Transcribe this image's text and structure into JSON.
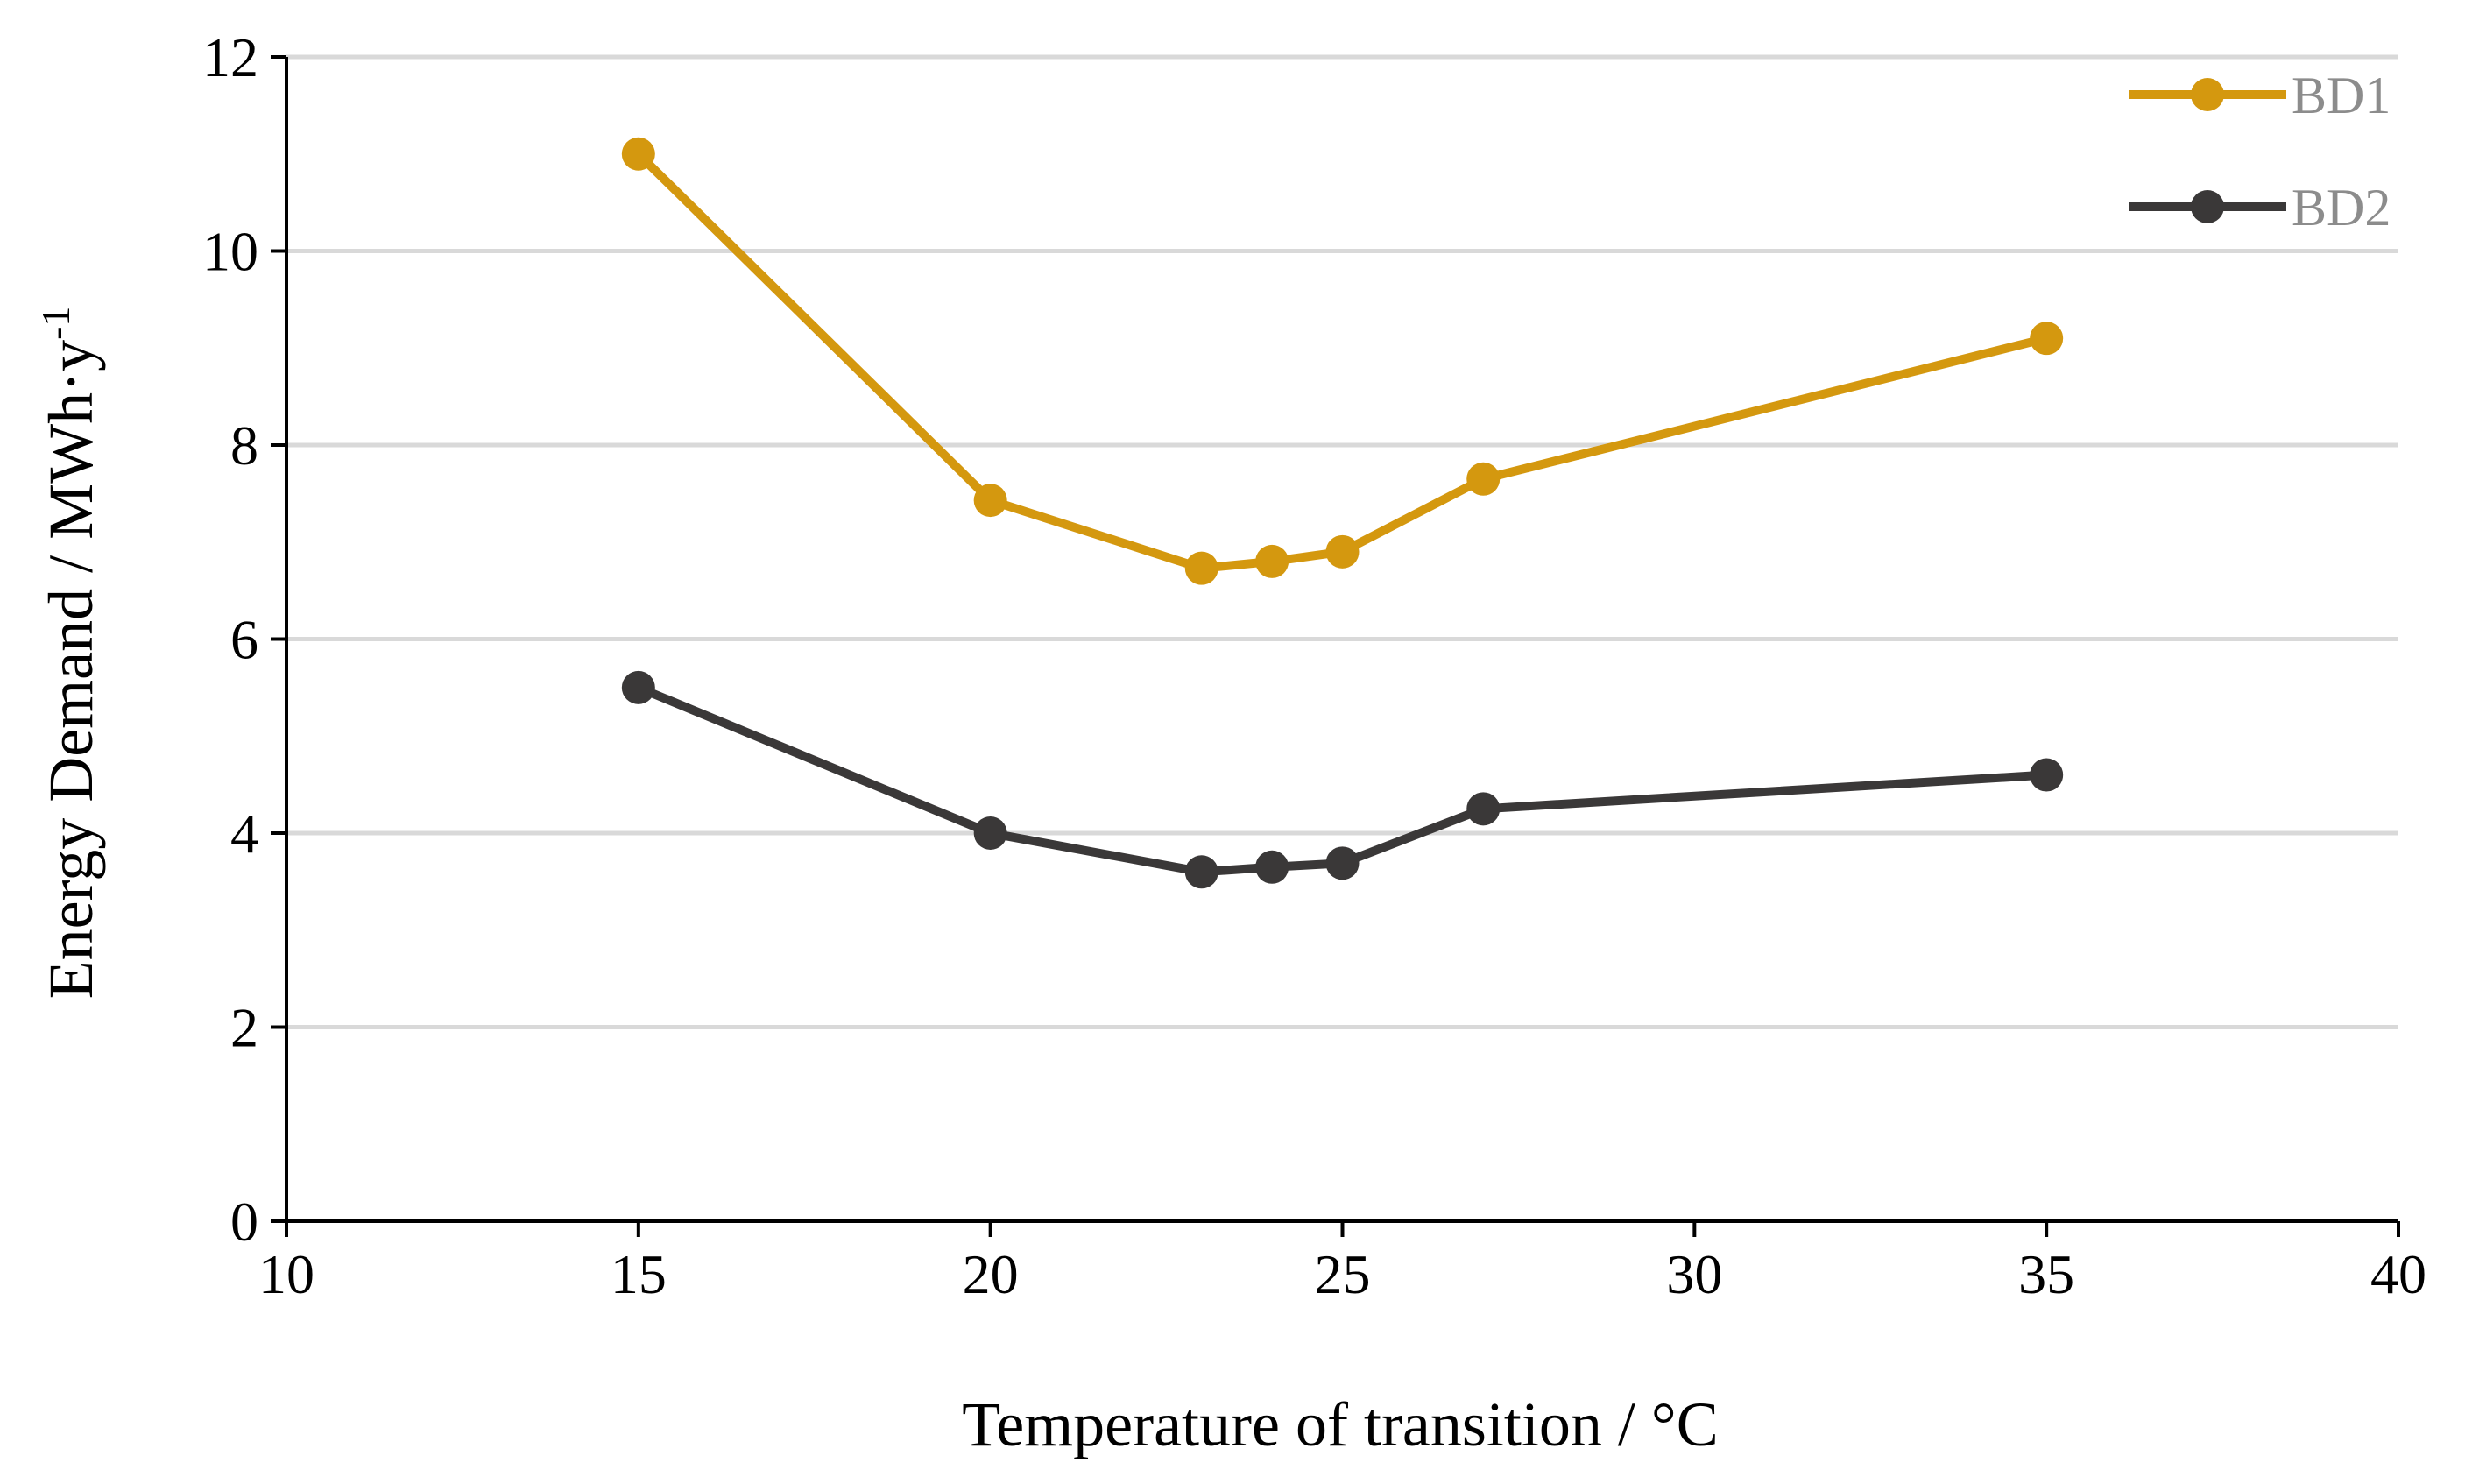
{
  "chart_data": {
    "type": "line",
    "title": "",
    "xlabel": "Temperature of transition / °C",
    "ylabel": "Energy Demand /  MWh·y",
    "ylabel_superscript": "-1",
    "xlim": [
      10,
      40
    ],
    "ylim": [
      0,
      12
    ],
    "xticks": [
      10,
      15,
      20,
      25,
      30,
      35,
      40
    ],
    "yticks": [
      0,
      2,
      4,
      6,
      8,
      10,
      12
    ],
    "grid": "horizontal",
    "legend_position": "top-right",
    "x": [
      15,
      20,
      23,
      24,
      25,
      27,
      35
    ],
    "series": [
      {
        "name": "BD1",
        "color": "#d4980f",
        "values": [
          11.0,
          7.43,
          6.73,
          6.8,
          6.9,
          7.65,
          9.1
        ]
      },
      {
        "name": "BD2",
        "color": "#3a3838",
        "values": [
          5.5,
          4.0,
          3.6,
          3.65,
          3.69,
          4.25,
          4.6
        ]
      }
    ]
  }
}
